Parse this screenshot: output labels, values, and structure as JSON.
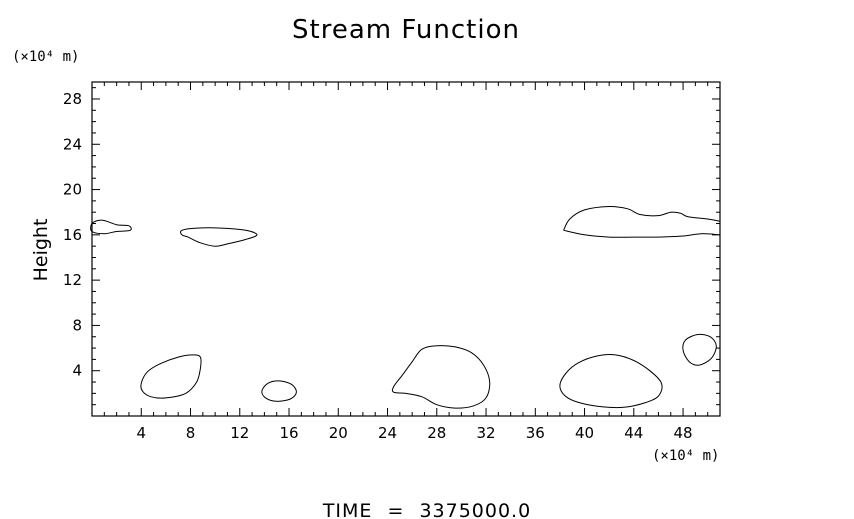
{
  "chart_data": {
    "type": "contour",
    "title": "Stream Function",
    "ylabel": "Height",
    "x_unit": "(×10⁴ m)",
    "y_unit": "(×10⁴ m)",
    "xlim": [
      0,
      51
    ],
    "ylim": [
      0,
      29.5
    ],
    "x_ticks": [
      4,
      8,
      12,
      16,
      20,
      24,
      28,
      32,
      36,
      40,
      44,
      48
    ],
    "y_ticks": [
      4,
      8,
      12,
      16,
      20,
      24,
      28
    ],
    "x_tick_labels": [
      "4",
      "8",
      "12",
      "16",
      "20",
      "24",
      "28",
      "32",
      "36",
      "40",
      "44",
      "48"
    ],
    "y_tick_labels": [
      "4",
      "8",
      "12",
      "16",
      "20",
      "24",
      "28"
    ],
    "grid": false,
    "contours": [
      [
        [
          0.0,
          17.0
        ],
        [
          0.8,
          17.3
        ],
        [
          2.0,
          16.9
        ],
        [
          3.0,
          16.8
        ],
        [
          3.1,
          16.4
        ],
        [
          2.0,
          16.3
        ],
        [
          1.0,
          16.1
        ],
        [
          0.0,
          16.3
        ]
      ],
      [
        [
          7.3,
          16.4
        ],
        [
          8.5,
          16.6
        ],
        [
          10.5,
          16.6
        ],
        [
          12.5,
          16.4
        ],
        [
          13.4,
          16.0
        ],
        [
          12.5,
          15.6
        ],
        [
          11.0,
          15.2
        ],
        [
          10.0,
          15.0
        ],
        [
          8.8,
          15.3
        ],
        [
          7.8,
          15.8
        ],
        [
          7.3,
          16.0
        ]
      ],
      [
        [
          38.3,
          16.4
        ],
        [
          38.8,
          17.4
        ],
        [
          40.0,
          18.2
        ],
        [
          42.0,
          18.5
        ],
        [
          43.5,
          18.3
        ],
        [
          44.5,
          17.8
        ],
        [
          46.0,
          17.7
        ],
        [
          47.0,
          18.0
        ],
        [
          47.8,
          17.9
        ],
        [
          48.4,
          17.6
        ],
        [
          50.0,
          17.4
        ],
        [
          51.0,
          17.2
        ]
      ],
      [
        [
          38.3,
          16.4
        ],
        [
          40.0,
          16.0
        ],
        [
          42.0,
          15.8
        ],
        [
          44.0,
          15.8
        ],
        [
          46.0,
          15.8
        ],
        [
          48.0,
          15.9
        ],
        [
          49.5,
          16.1
        ],
        [
          51.0,
          16.0
        ]
      ],
      [
        [
          4.0,
          2.9
        ],
        [
          4.5,
          3.9
        ],
        [
          5.5,
          4.6
        ],
        [
          7.0,
          5.2
        ],
        [
          8.2,
          5.4
        ],
        [
          8.8,
          5.2
        ],
        [
          8.8,
          4.2
        ],
        [
          8.5,
          3.0
        ],
        [
          7.6,
          2.0
        ],
        [
          6.0,
          1.6
        ],
        [
          4.8,
          1.7
        ],
        [
          4.1,
          2.2
        ]
      ],
      [
        [
          14.3,
          2.9
        ],
        [
          15.2,
          3.1
        ],
        [
          16.2,
          2.8
        ],
        [
          16.6,
          2.1
        ],
        [
          16.1,
          1.5
        ],
        [
          15.0,
          1.3
        ],
        [
          14.1,
          1.6
        ],
        [
          13.8,
          2.2
        ]
      ],
      [
        [
          24.5,
          2.6
        ],
        [
          25.2,
          3.6
        ],
        [
          26.0,
          4.8
        ],
        [
          26.8,
          5.9
        ],
        [
          28.0,
          6.2
        ],
        [
          29.5,
          6.1
        ],
        [
          30.8,
          5.6
        ],
        [
          31.8,
          4.5
        ],
        [
          32.3,
          3.0
        ],
        [
          32.0,
          1.6
        ],
        [
          31.0,
          0.9
        ],
        [
          29.5,
          0.7
        ],
        [
          28.0,
          1.0
        ],
        [
          26.8,
          1.7
        ],
        [
          25.5,
          2.0
        ],
        [
          24.5,
          2.1
        ]
      ],
      [
        [
          38.0,
          2.7
        ],
        [
          38.5,
          3.8
        ],
        [
          39.5,
          4.7
        ],
        [
          41.0,
          5.3
        ],
        [
          42.5,
          5.4
        ],
        [
          44.0,
          4.9
        ],
        [
          45.3,
          4.0
        ],
        [
          46.2,
          3.0
        ],
        [
          46.2,
          2.1
        ],
        [
          45.5,
          1.4
        ],
        [
          43.5,
          0.8
        ],
        [
          41.5,
          0.8
        ],
        [
          39.5,
          1.2
        ],
        [
          38.4,
          1.8
        ]
      ],
      [
        [
          48.0,
          5.8
        ],
        [
          48.2,
          6.7
        ],
        [
          49.2,
          7.2
        ],
        [
          50.2,
          7.0
        ],
        [
          50.7,
          6.2
        ],
        [
          50.3,
          5.1
        ],
        [
          49.3,
          4.5
        ],
        [
          48.5,
          4.8
        ]
      ]
    ]
  },
  "footer": {
    "time_label": "TIME",
    "equals": "=",
    "time_value": "3375000.0"
  }
}
